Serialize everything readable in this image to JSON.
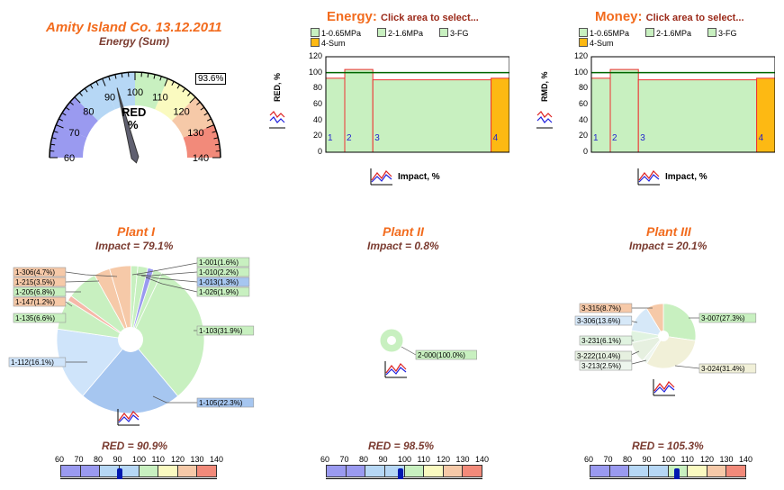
{
  "company_title": "Amity Island Co. 13.12.2011",
  "gauge": {
    "subtitle": "Energy (Sum)",
    "needle_value": 93.6,
    "readout": "93.6%",
    "center_label_1": "RED",
    "center_label_2": "%",
    "ticks": [
      "60",
      "70",
      "80",
      "90",
      "100",
      "110",
      "120",
      "130",
      "140"
    ]
  },
  "energy_chart": {
    "title": "Energy:",
    "hint": "Click area to select...",
    "ylabel": "RED, %",
    "xlabel": "Impact, %"
  },
  "money_chart": {
    "title": "Money:",
    "hint": "Click area to select...",
    "ylabel": "RMD, %",
    "xlabel": "Impact, %"
  },
  "legend_items": [
    "1-0.65MPa",
    "2-1.6MPa",
    "3-FG",
    "4-Sum"
  ],
  "y_ticks": [
    "0",
    "20",
    "40",
    "60",
    "80",
    "100",
    "120"
  ],
  "area_labels": [
    "1",
    "2",
    "3",
    "4"
  ],
  "plants": [
    {
      "title": "Plant I",
      "impact": "Impact = 79.1%",
      "red": "RED = 90.9%",
      "red_value": 90.9,
      "labels_left": [
        "1-306(4.7%)",
        "1-215(3.5%)",
        "1-205(6.8%)",
        "1-147(1.2%)",
        "1-135(6.6%)",
        "1-112(16.1%)"
      ],
      "labels_right": [
        "1-001(1.6%)",
        "1-010(2.2%)",
        "1-013(1.3%)",
        "1-026(1.9%)",
        "1-103(31.9%)",
        "1-105(22.3%)"
      ]
    },
    {
      "title": "Plant II",
      "impact": "Impact = 0.8%",
      "red": "RED = 98.5%",
      "red_value": 98.5,
      "labels_right": [
        "2-000(100.0%)"
      ]
    },
    {
      "title": "Plant III",
      "impact": "Impact = 20.1%",
      "red": "RED = 105.3%",
      "red_value": 105.3,
      "labels_left": [
        "3-315(8.7%)",
        "3-306(13.6%)",
        "3-231(6.1%)",
        "3-222(10.4%)",
        "3-213(2.5%)"
      ],
      "labels_right": [
        "3-007(27.3%)",
        "3-024(31.4%)"
      ]
    }
  ],
  "scale_ticks": [
    "60",
    "70",
    "80",
    "90",
    "100",
    "110",
    "120",
    "130",
    "140"
  ],
  "colors": {
    "blue": "#9a9af0",
    "lightblue": "#b6d7f5",
    "green": "#c8f0c0",
    "yellow": "#fafac0",
    "salmon": "#f6c9a8",
    "red": "#f28a7a",
    "orange": "#f26b1d"
  }
}
